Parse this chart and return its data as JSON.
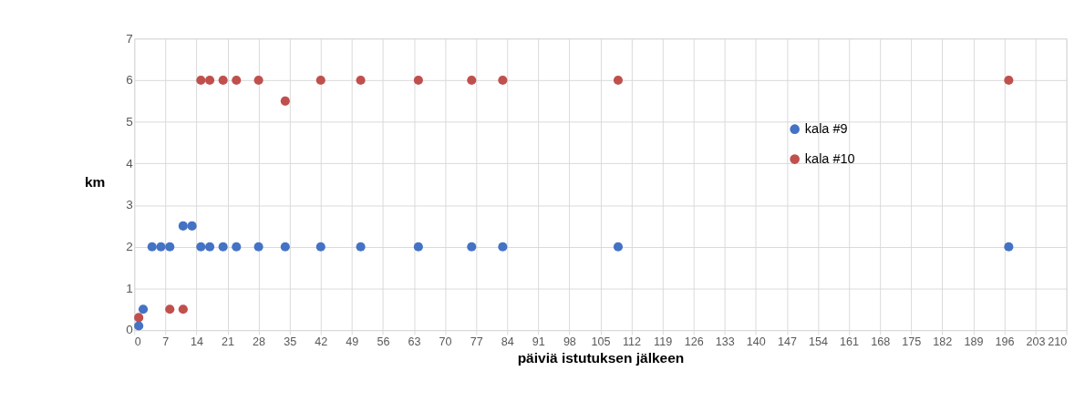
{
  "chart_data": {
    "type": "scatter",
    "xlabel": "päiviä istutuksen jälkeen",
    "ylabel": "km",
    "series": [
      {
        "name": "kala #9",
        "color": "#4472c4",
        "x": [
          1,
          2,
          4,
          6,
          8,
          11,
          13,
          15,
          17,
          20,
          23,
          28,
          34,
          42,
          51,
          64,
          76,
          83,
          109,
          197
        ],
        "values": [
          0.1,
          0.5,
          2,
          2,
          2,
          2.5,
          2.5,
          2,
          2,
          2,
          2,
          2,
          2,
          2,
          2,
          2,
          2,
          2,
          2,
          2
        ]
      },
      {
        "name": "kala #10",
        "color": "#c0504d",
        "x": [
          1,
          8,
          11,
          15,
          17,
          20,
          23,
          28,
          34,
          42,
          51,
          64,
          76,
          83,
          109,
          197
        ],
        "values": [
          0.3,
          0.5,
          0.5,
          6,
          6,
          6,
          6,
          6,
          5.5,
          6,
          6,
          6,
          6,
          6,
          6,
          6
        ]
      }
    ],
    "xlim": [
      0,
      210
    ],
    "xticks": [
      0,
      7,
      14,
      21,
      28,
      35,
      42,
      49,
      56,
      63,
      70,
      77,
      84,
      91,
      98,
      105,
      112,
      119,
      126,
      133,
      140,
      147,
      154,
      161,
      168,
      175,
      182,
      189,
      196,
      203,
      210
    ],
    "ylim": [
      0,
      7
    ],
    "yticks": [
      0,
      1,
      2,
      3,
      4,
      5,
      6,
      7
    ],
    "grid": true,
    "legend": "right",
    "marker": "circle"
  }
}
